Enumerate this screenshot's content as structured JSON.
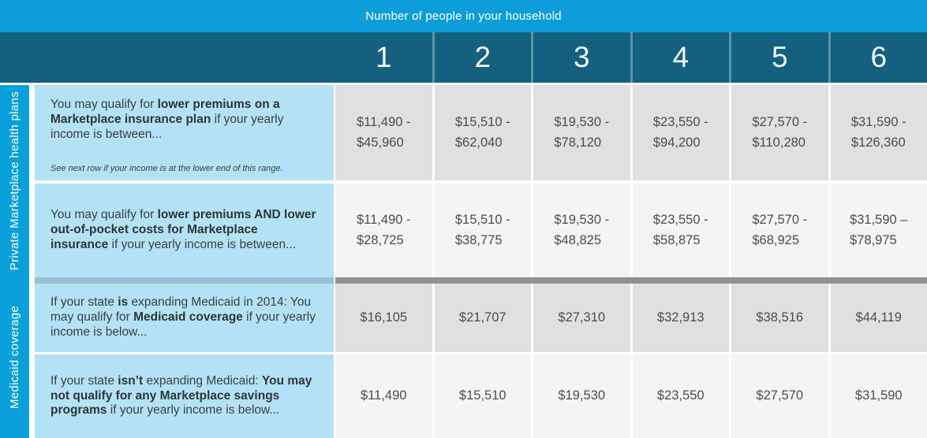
{
  "header": {
    "title": "Number of people in your household",
    "household_sizes": [
      "1",
      "2",
      "3",
      "4",
      "5",
      "6"
    ]
  },
  "colors": {
    "top_bar": "#0d9ed9",
    "column_header": "#14607e",
    "sidebar": "#07a0da",
    "description_cell": "#b3e2f4",
    "data_cell_dark": "#e0e0e0",
    "data_cell_light": "#f4f4f4",
    "section_divider": "#919191"
  },
  "sections": [
    {
      "label": "Private Marketplace health plans",
      "rows": [
        {
          "desc": [
            {
              "t": "You may qualify for "
            },
            {
              "t": "lower premiums on a Marketplace insurance plan",
              "b": true
            },
            {
              "t": " if your yearly income is between..."
            }
          ],
          "note": "See next row if your income is at the lower end of this range.",
          "values": [
            "$11,490 -\n$45,960",
            "$15,510 -\n$62,040",
            "$19,530 -\n$78,120",
            "$23,550 -\n$94,200",
            "$27,570 -\n$110,280",
            "$31,590 -\n$126,360"
          ]
        },
        {
          "desc": [
            {
              "t": "You may qualify for "
            },
            {
              "t": "lower premiums AND lower out-of-pocket costs for Marketplace insurance",
              "b": true
            },
            {
              "t": " if your yearly income is between..."
            }
          ],
          "values": [
            "$11,490 -\n$28,725",
            "$15,510 -\n$38,775",
            "$19,530 -\n$48,825",
            "$23,550 -\n$58,875",
            "$27,570 -\n$68,925",
            "$31,590 –\n$78,975"
          ]
        }
      ]
    },
    {
      "label": "Medicaid coverage",
      "rows": [
        {
          "desc": [
            {
              "t": "If your state "
            },
            {
              "t": "is",
              "b": true
            },
            {
              "t": " expanding Medicaid in 2014: You may qualify for "
            },
            {
              "t": "Medicaid coverage",
              "b": true
            },
            {
              "t": " if your yearly income is below..."
            }
          ],
          "values": [
            "$16,105",
            "$21,707",
            "$27,310",
            "$32,913",
            "$38,516",
            "$44,119"
          ]
        },
        {
          "desc": [
            {
              "t": "If your state "
            },
            {
              "t": "isn’t",
              "b": true
            },
            {
              "t": " expanding Medicaid: "
            },
            {
              "t": "You may not qualify for any Marketplace savings programs",
              "b": true
            },
            {
              "t": " if your yearly income is below..."
            }
          ],
          "values": [
            "$11,490",
            "$15,510",
            "$19,530",
            "$23,550",
            "$27,570",
            "$31,590"
          ]
        }
      ]
    }
  ],
  "chart_data": {
    "type": "table",
    "title": "Number of people in your household",
    "columns": [
      "1",
      "2",
      "3",
      "4",
      "5",
      "6"
    ],
    "rows": [
      {
        "section": "Private Marketplace health plans",
        "label": "Lower premiums on a Marketplace insurance plan — yearly income between",
        "values": [
          "$11,490 - $45,960",
          "$15,510 - $62,040",
          "$19,530 - $78,120",
          "$23,550 - $94,200",
          "$27,570 - $110,280",
          "$31,590 - $126,360"
        ]
      },
      {
        "section": "Private Marketplace health plans",
        "label": "Lower premiums AND lower out-of-pocket costs for Marketplace insurance — yearly income between",
        "values": [
          "$11,490 - $28,725",
          "$15,510 - $38,775",
          "$19,530 - $48,825",
          "$23,550 - $58,875",
          "$27,570 - $68,925",
          "$31,590 – $78,975"
        ]
      },
      {
        "section": "Medicaid coverage",
        "label": "State is expanding Medicaid in 2014: may qualify for Medicaid coverage — yearly income below",
        "values": [
          "$16,105",
          "$21,707",
          "$27,310",
          "$32,913",
          "$38,516",
          "$44,119"
        ]
      },
      {
        "section": "Medicaid coverage",
        "label": "State isn’t expanding Medicaid: may not qualify for any Marketplace savings programs — yearly income below",
        "values": [
          "$11,490",
          "$15,510",
          "$19,530",
          "$23,550",
          "$27,570",
          "$31,590"
        ]
      }
    ]
  }
}
